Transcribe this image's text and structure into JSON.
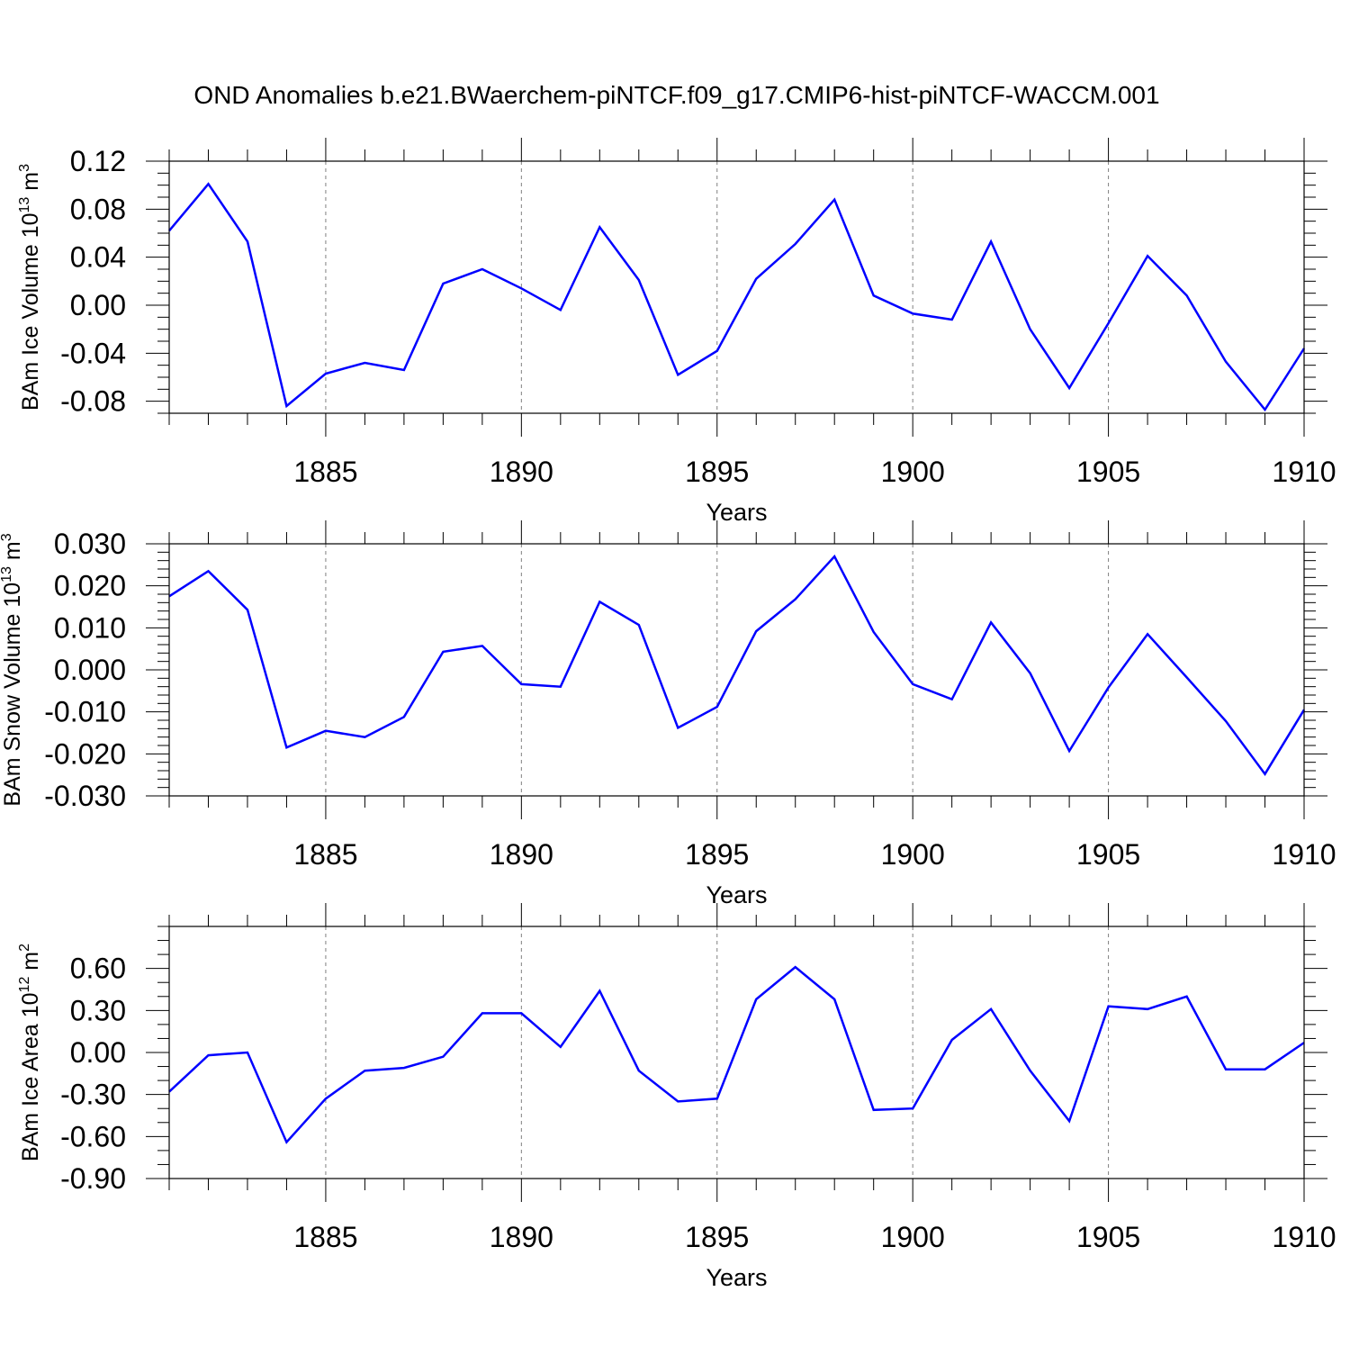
{
  "title": "OND Anomalies b.e21.BWaerchem-piNTCF.f09_g17.CMIP6-hist-piNTCF-WACCM.001",
  "colors": {
    "line": "#0000ff",
    "axis": "#000000",
    "grid": "#808080"
  },
  "chart_data": [
    {
      "type": "line",
      "ylabel_main": "BAm Ice Volume 10",
      "ylabel_sup": "13",
      "ylabel_unit": " m",
      "ylabel_unit_sup": "3",
      "xlabel": "Years",
      "xlim": [
        1881,
        1910
      ],
      "ylim": [
        -0.09,
        0.12
      ],
      "ytick_values": [
        -0.08,
        -0.04,
        0.0,
        0.04,
        0.08,
        0.12
      ],
      "ytick_labels": [
        "-0.08",
        "-0.04",
        "0.00",
        "0.04",
        "0.08",
        "0.12"
      ],
      "minor_step": 0.01,
      "xtick_values": [
        1885,
        1890,
        1895,
        1900,
        1905,
        1910
      ],
      "xtick_labels": [
        "1885",
        "1890",
        "1895",
        "1900",
        "1905",
        "1910"
      ],
      "x": [
        1881,
        1882,
        1883,
        1884,
        1885,
        1886,
        1887,
        1888,
        1889,
        1890,
        1891,
        1892,
        1893,
        1894,
        1895,
        1896,
        1897,
        1898,
        1899,
        1900,
        1901,
        1902,
        1903,
        1904,
        1905,
        1906,
        1907,
        1908,
        1909,
        1910
      ],
      "series": [
        {
          "name": "BAm Ice Volume",
          "values": [
            0.062,
            0.101,
            0.053,
            -0.084,
            -0.057,
            -0.048,
            -0.054,
            0.018,
            0.03,
            0.014,
            -0.004,
            0.065,
            0.021,
            -0.058,
            -0.038,
            0.022,
            0.051,
            0.088,
            0.008,
            -0.007,
            -0.012,
            0.053,
            -0.02,
            -0.069,
            -0.015,
            0.041,
            0.008,
            -0.047,
            -0.087,
            -0.036
          ]
        }
      ]
    },
    {
      "type": "line",
      "ylabel_main": "BAm Snow Volume 10",
      "ylabel_sup": "13",
      "ylabel_unit": " m",
      "ylabel_unit_sup": "3",
      "xlabel": "Years",
      "xlim": [
        1881,
        1910
      ],
      "ylim": [
        -0.03,
        0.03
      ],
      "ytick_values": [
        -0.03,
        -0.02,
        -0.01,
        0.0,
        0.01,
        0.02,
        0.03
      ],
      "ytick_labels": [
        "-0.030",
        "-0.020",
        "-0.010",
        "0.000",
        "0.010",
        "0.020",
        "0.030"
      ],
      "minor_step": 0.002,
      "xtick_values": [
        1885,
        1890,
        1895,
        1900,
        1905,
        1910
      ],
      "xtick_labels": [
        "1885",
        "1890",
        "1895",
        "1900",
        "1905",
        "1910"
      ],
      "x": [
        1881,
        1882,
        1883,
        1884,
        1885,
        1886,
        1887,
        1888,
        1889,
        1890,
        1891,
        1892,
        1893,
        1894,
        1895,
        1896,
        1897,
        1898,
        1899,
        1900,
        1901,
        1902,
        1903,
        1904,
        1905,
        1906,
        1907,
        1908,
        1909,
        1910
      ],
      "series": [
        {
          "name": "BAm Snow Volume",
          "values": [
            0.0175,
            0.0235,
            0.0143,
            -0.0185,
            -0.0145,
            -0.016,
            -0.0112,
            0.0043,
            0.0057,
            -0.0034,
            -0.004,
            0.0162,
            0.0107,
            -0.0138,
            -0.0088,
            0.0092,
            0.0168,
            0.027,
            0.009,
            -0.0034,
            -0.007,
            0.0113,
            -0.0008,
            -0.0193,
            -0.0042,
            0.0085,
            -0.0018,
            -0.0122,
            -0.0248,
            -0.0095
          ]
        }
      ]
    },
    {
      "type": "line",
      "ylabel_main": "BAm Ice Area 10",
      "ylabel_sup": "12",
      "ylabel_unit": " m",
      "ylabel_unit_sup": "2",
      "xlabel": "Years",
      "xlim": [
        1881,
        1910
      ],
      "ylim": [
        -0.9,
        0.9
      ],
      "ytick_values": [
        -0.9,
        -0.6,
        -0.3,
        0.0,
        0.3,
        0.6
      ],
      "ytick_labels": [
        "-0.90",
        "-0.60",
        "-0.30",
        "0.00",
        "0.30",
        "0.60"
      ],
      "minor_step": 0.1,
      "xtick_values": [
        1885,
        1890,
        1895,
        1900,
        1905,
        1910
      ],
      "xtick_labels": [
        "1885",
        "1890",
        "1895",
        "1900",
        "1905",
        "1910"
      ],
      "x": [
        1881,
        1882,
        1883,
        1884,
        1885,
        1886,
        1887,
        1888,
        1889,
        1890,
        1891,
        1892,
        1893,
        1894,
        1895,
        1896,
        1897,
        1898,
        1899,
        1900,
        1901,
        1902,
        1903,
        1904,
        1905,
        1906,
        1907,
        1908,
        1909,
        1910
      ],
      "series": [
        {
          "name": "BAm Ice Area",
          "values": [
            -0.28,
            -0.02,
            0.0,
            -0.64,
            -0.33,
            -0.13,
            -0.11,
            -0.03,
            0.28,
            0.28,
            0.04,
            0.44,
            -0.13,
            -0.35,
            -0.33,
            0.38,
            0.61,
            0.38,
            -0.41,
            -0.4,
            0.09,
            0.31,
            -0.13,
            -0.49,
            0.33,
            0.31,
            0.4,
            -0.12,
            -0.12,
            0.07
          ]
        }
      ]
    }
  ]
}
